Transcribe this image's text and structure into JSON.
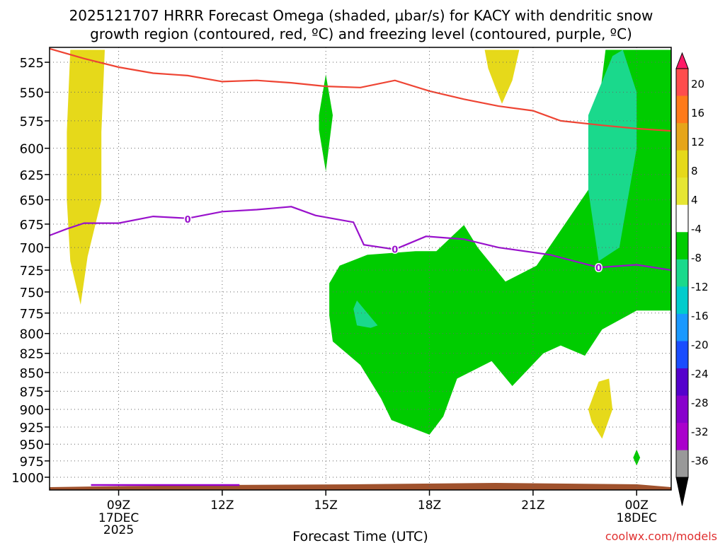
{
  "title_line1": "2025121707 HRRR Forecast Omega (shaded, μbar/s) for KACY with dendritic snow",
  "title_line2": "growth region (contoured, red, ºC) and freezing level (contoured, purple, ºC)",
  "credit": "coolwx.com/models",
  "chart_data": {
    "type": "time-height",
    "xlabel": "Forecast Time (UTC)",
    "x_ticks": [
      {
        "hour": 9,
        "label": "09Z",
        "sub1": "17DEC",
        "sub2": "2025"
      },
      {
        "hour": 12,
        "label": "12Z"
      },
      {
        "hour": 15,
        "label": "15Z"
      },
      {
        "hour": 18,
        "label": "18Z"
      },
      {
        "hour": 21,
        "label": "21Z"
      },
      {
        "hour": 24,
        "label": "00Z",
        "sub1": "18DEC"
      }
    ],
    "xlim": [
      7,
      25
    ],
    "y_levels_hpa": [
      525,
      550,
      575,
      600,
      625,
      650,
      675,
      700,
      725,
      750,
      775,
      800,
      825,
      850,
      875,
      900,
      925,
      950,
      975,
      1000
    ],
    "y_scale": "log-pressure",
    "ylim_hpa": [
      513,
      1020
    ],
    "grid": true,
    "colorbar": {
      "labels": [
        "20",
        "16",
        "12",
        "8",
        "4",
        "-4",
        "-8",
        "-12",
        "-16",
        "-20",
        "-24",
        "-28",
        "-32",
        "-36"
      ],
      "colors": [
        "#ff1a66",
        "#ff4d4d",
        "#ff7a1a",
        "#e6a51a",
        "#e6d91a",
        "#e6e633",
        "#ffffff",
        "#00cc00",
        "#1ad98c",
        "#00cccc",
        "#1a99ff",
        "#1a4dff",
        "#5500cc",
        "#8800cc",
        "#aa00cc",
        "#999999",
        "#000000"
      ]
    },
    "contour_labels": [
      {
        "text": "0",
        "hour": 11.0,
        "hpa": 670
      },
      {
        "text": "0",
        "hour": 17.0,
        "hpa": 702
      },
      {
        "text": "0",
        "hour": 22.9,
        "hpa": 722
      }
    ],
    "freezing_level_0C": [
      [
        7,
        687
      ],
      [
        7.5,
        680
      ],
      [
        8,
        674
      ],
      [
        9,
        674
      ],
      [
        10,
        667
      ],
      [
        11,
        669
      ],
      [
        12,
        662
      ],
      [
        13,
        660
      ],
      [
        14,
        657
      ],
      [
        14.7,
        666
      ],
      [
        15.8,
        673
      ],
      [
        16.1,
        697
      ],
      [
        17,
        702
      ],
      [
        17.9,
        688
      ],
      [
        19,
        691
      ],
      [
        20,
        700
      ],
      [
        21.5,
        708
      ],
      [
        22.9,
        722
      ],
      [
        24,
        719
      ],
      [
        25,
        725
      ]
    ],
    "dgz_upper_contour": [
      [
        7,
        514
      ],
      [
        8,
        522
      ],
      [
        9,
        529
      ],
      [
        10,
        534
      ],
      [
        11,
        536
      ],
      [
        12,
        541
      ],
      [
        13,
        540
      ],
      [
        14,
        542
      ],
      [
        15,
        545
      ],
      [
        16,
        546
      ],
      [
        17,
        540
      ],
      [
        18,
        549
      ],
      [
        19,
        556
      ],
      [
        20,
        562
      ],
      [
        21,
        566
      ],
      [
        21.8,
        575
      ],
      [
        23,
        579
      ],
      [
        24,
        582
      ],
      [
        25,
        584
      ]
    ],
    "omega_regions": [
      {
        "value": "-4",
        "color": "#00cc00",
        "hpa_hour_outline": [
          [
            15.1,
            740
          ],
          [
            15.4,
            720
          ],
          [
            16.2,
            708
          ],
          [
            17.6,
            704
          ],
          [
            18.2,
            704
          ],
          [
            19.0,
            676
          ],
          [
            19.4,
            700
          ],
          [
            20.2,
            738
          ],
          [
            21.1,
            720
          ],
          [
            22.6,
            640
          ],
          [
            23.1,
            515
          ],
          [
            25,
            515
          ],
          [
            25,
            772
          ],
          [
            24.0,
            772
          ],
          [
            23.0,
            795
          ],
          [
            22.5,
            828
          ],
          [
            21.8,
            815
          ],
          [
            21.3,
            825
          ],
          [
            20.4,
            868
          ],
          [
            19.8,
            835
          ],
          [
            18.8,
            858
          ],
          [
            18.4,
            910
          ],
          [
            18.0,
            936
          ],
          [
            16.9,
            915
          ],
          [
            16.6,
            885
          ],
          [
            16.0,
            840
          ],
          [
            15.2,
            810
          ],
          [
            15.1,
            778
          ]
        ]
      },
      {
        "value": "-4",
        "color": "#00cc00",
        "hpa_hour_outline": [
          [
            15.0,
            535
          ],
          [
            15.2,
            570
          ],
          [
            15.0,
            622
          ],
          [
            14.8,
            583
          ],
          [
            14.8,
            570
          ]
        ]
      },
      {
        "value": "-4",
        "color": "#00cc00",
        "hpa_hour_outline": [
          [
            24.0,
            958
          ],
          [
            24.1,
            970
          ],
          [
            24.0,
            982
          ],
          [
            23.9,
            970
          ]
        ]
      },
      {
        "value": "-8",
        "color": "#1ad98c",
        "hpa_hour_outline": [
          [
            23.3,
            520
          ],
          [
            23.6,
            515
          ],
          [
            24.0,
            550
          ],
          [
            24.0,
            600
          ],
          [
            23.5,
            700
          ],
          [
            22.9,
            715
          ],
          [
            22.6,
            640
          ],
          [
            22.6,
            570
          ]
        ]
      },
      {
        "value": "-8",
        "color": "#1ad98c",
        "hpa_hour_outline": [
          [
            15.9,
            760
          ],
          [
            16.5,
            790
          ],
          [
            16.3,
            793
          ],
          [
            15.9,
            790
          ],
          [
            15.8,
            770
          ]
        ]
      },
      {
        "value": "4",
        "color": "#e6d91a",
        "hpa_hour_outline": [
          [
            7.6,
            515
          ],
          [
            8.6,
            515
          ],
          [
            8.5,
            585
          ],
          [
            8.5,
            650
          ],
          [
            8.1,
            710
          ],
          [
            7.9,
            765
          ],
          [
            7.6,
            715
          ],
          [
            7.5,
            650
          ],
          [
            7.5,
            585
          ]
        ]
      },
      {
        "value": "4",
        "color": "#e6d91a",
        "hpa_hour_outline": [
          [
            19.6,
            515
          ],
          [
            20.6,
            515
          ],
          [
            20.4,
            540
          ],
          [
            20.1,
            560
          ],
          [
            19.9,
            545
          ],
          [
            19.7,
            530
          ]
        ]
      },
      {
        "value": "4",
        "color": "#e6d91a",
        "hpa_hour_outline": [
          [
            22.9,
            862
          ],
          [
            23.2,
            858
          ],
          [
            23.3,
            900
          ],
          [
            23.0,
            942
          ],
          [
            22.7,
            918
          ],
          [
            22.6,
            900
          ]
        ]
      }
    ]
  }
}
